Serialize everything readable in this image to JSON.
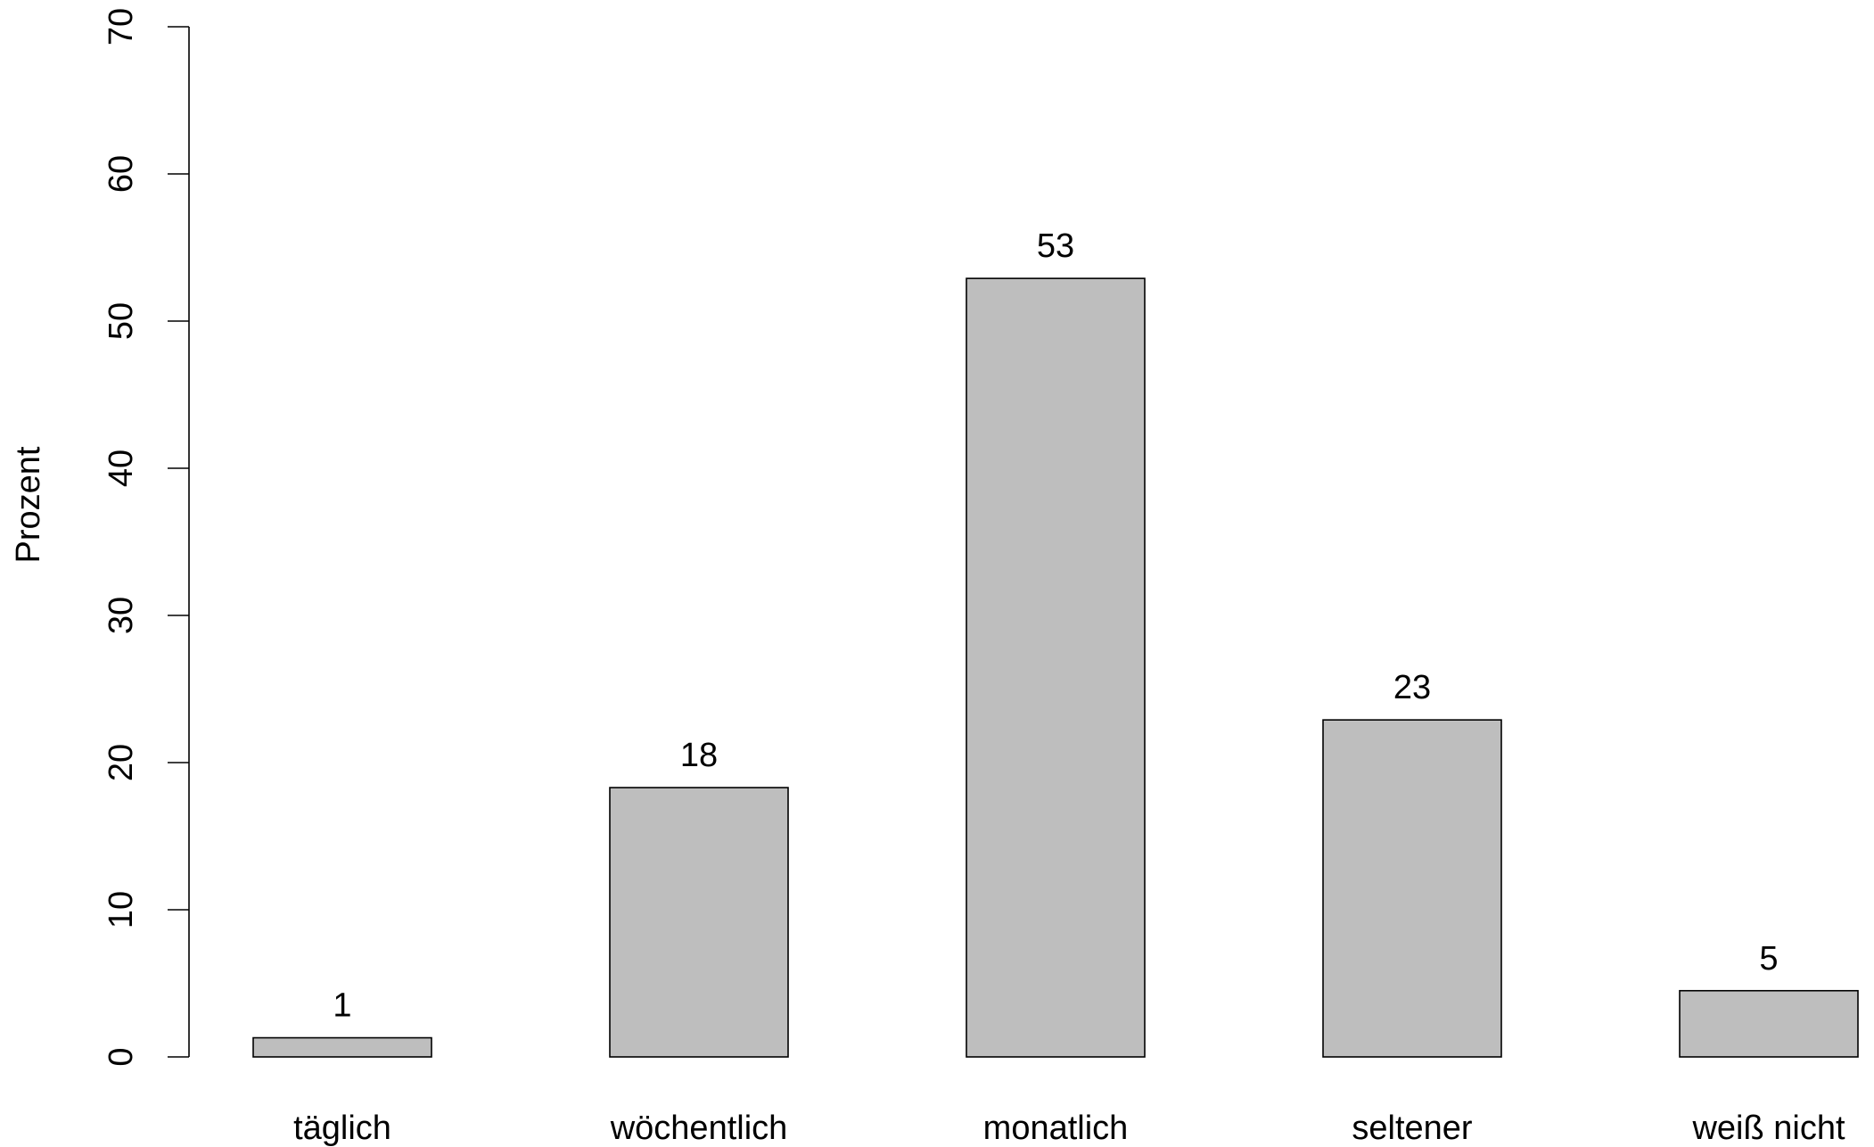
{
  "chart_data": {
    "type": "bar",
    "title": "",
    "xlabel": "",
    "ylabel": "Prozent",
    "ylim": [
      0,
      70
    ],
    "yticks": [
      0,
      10,
      20,
      30,
      40,
      50,
      60,
      70
    ],
    "grid": false,
    "legend": "none",
    "categories": [
      "täglich",
      "wöchentlich",
      "monatlich",
      "seltener",
      "weiß nicht"
    ],
    "values": [
      1.3,
      18.3,
      52.9,
      22.9,
      4.5
    ],
    "data_labels": [
      "1",
      "18",
      "53",
      "23",
      "5"
    ],
    "bar_color": "#bebebe",
    "outline_color": "#000000"
  }
}
